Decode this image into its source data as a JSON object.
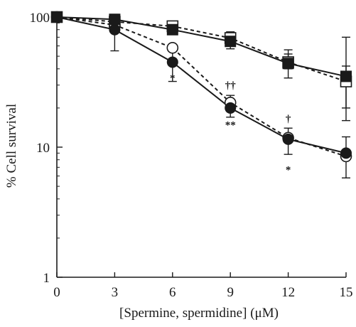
{
  "chart_data": {
    "type": "line",
    "title": "",
    "xlabel": "[Spermine, spermidine] (μM)",
    "ylabel": "% Cell survival",
    "xlim": [
      0,
      15
    ],
    "ylim": [
      1,
      100
    ],
    "y_scale": "log",
    "x_ticks": [
      0,
      3,
      6,
      9,
      12,
      15
    ],
    "x_tick_labels": [
      "0",
      "3",
      "6",
      "9",
      "12",
      "15"
    ],
    "y_ticks": [
      1,
      10,
      100
    ],
    "y_tick_labels": [
      "1",
      "10",
      "100"
    ],
    "grid": false,
    "legend": "none",
    "x": [
      0,
      3,
      6,
      9,
      12,
      15
    ],
    "series": [
      {
        "marker": "filled-square",
        "line": "solid",
        "color": "#1a1a1a",
        "values": [
          100,
          96,
          80,
          65,
          44,
          35
        ],
        "err_low": [
          100,
          85,
          75,
          57,
          34,
          16
        ],
        "err_high": [
          100,
          105,
          87,
          77,
          56,
          70
        ]
      },
      {
        "marker": "open-square",
        "line": "dashed",
        "color": "#1a1a1a",
        "values": [
          100,
          92,
          85,
          69,
          45,
          32
        ],
        "err_low": [
          100,
          80,
          80,
          63,
          40,
          20
        ],
        "err_high": [
          100,
          101,
          90,
          76,
          52,
          42
        ]
      },
      {
        "marker": "filled-circle",
        "line": "solid",
        "color": "#1a1a1a",
        "values": [
          100,
          80,
          45,
          20,
          11.5,
          9
        ],
        "err_low": [
          100,
          55,
          32,
          17,
          8.8,
          5.8
        ],
        "err_high": [
          100,
          95,
          55,
          23,
          14,
          12
        ]
      },
      {
        "marker": "open-circle",
        "line": "dashed",
        "color": "#1a1a1a",
        "values": [
          100,
          87,
          58,
          22,
          11.8,
          8.5
        ],
        "err_low": [
          100,
          80,
          55,
          20,
          11,
          8
        ],
        "err_high": [
          100,
          93,
          61,
          25,
          12.6,
          9
        ]
      }
    ],
    "annotations": [
      {
        "text": "*",
        "x": 6,
        "y": 32
      },
      {
        "text": "††",
        "x": 9,
        "y": 28
      },
      {
        "text": "**",
        "x": 9,
        "y": 14
      },
      {
        "text": "†",
        "x": 12,
        "y": 15.5
      },
      {
        "text": "*",
        "x": 12,
        "y": 6.3
      }
    ]
  }
}
